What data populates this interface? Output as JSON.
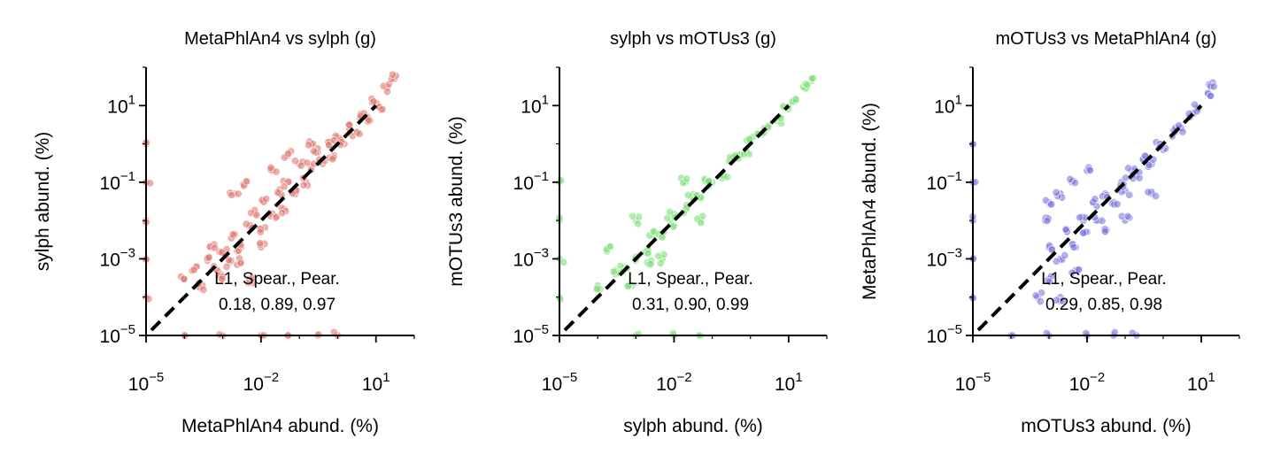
{
  "chart_data": [
    {
      "type": "scatter",
      "title": "MetaPhlAn4 vs sylph (g)",
      "xlabel": "MetaPhlAn4 abund. (%)",
      "ylabel": "sylph abund. (%)",
      "x_scale": "log",
      "y_scale": "log",
      "xlim": [
        1e-05,
        100
      ],
      "ylim": [
        1e-05,
        100
      ],
      "x_ticks": [
        {
          "value": 1e-05,
          "base": "10",
          "exp": "−5"
        },
        {
          "value": 0.01,
          "base": "10",
          "exp": "−2"
        },
        {
          "value": 10,
          "base": "10",
          "exp": "1"
        }
      ],
      "y_ticks": [
        {
          "value": 1e-05,
          "base": "10",
          "exp": "−5"
        },
        {
          "value": 0.001,
          "base": "10",
          "exp": "−3"
        },
        {
          "value": 0.1,
          "base": "10",
          "exp": "−1"
        },
        {
          "value": 10,
          "base": "10",
          "exp": "1"
        }
      ],
      "color": "#e07b74",
      "reference_line": "y = x",
      "annotation": {
        "header": "L1, Spear., Pear.",
        "values": "0.18, 0.89, 0.97"
      },
      "points": [
        [
          0.0001,
          0.0003
        ],
        [
          0.0002,
          0.0006
        ],
        [
          0.0004,
          0.0009
        ],
        [
          0.0007,
          0.0005
        ],
        [
          0.001,
          0.0015
        ],
        [
          0.0015,
          0.0008
        ],
        [
          0.002,
          0.004
        ],
        [
          0.003,
          0.002
        ],
        [
          0.005,
          0.007
        ],
        [
          0.007,
          0.015
        ],
        [
          0.01,
          0.006
        ],
        [
          0.012,
          0.03
        ],
        [
          0.02,
          0.015
        ],
        [
          0.03,
          0.05
        ],
        [
          0.04,
          0.02
        ],
        [
          0.05,
          0.1
        ],
        [
          0.08,
          0.06
        ],
        [
          0.1,
          0.3
        ],
        [
          0.15,
          0.1
        ],
        [
          0.2,
          0.25
        ],
        [
          0.3,
          0.6
        ],
        [
          0.4,
          0.3
        ],
        [
          0.6,
          0.9
        ],
        [
          0.8,
          0.5
        ],
        [
          1,
          1.5
        ],
        [
          1.5,
          1
        ],
        [
          2,
          3
        ],
        [
          3,
          2
        ],
        [
          4,
          6
        ],
        [
          6,
          5
        ],
        [
          8,
          12
        ],
        [
          12,
          9
        ],
        [
          20,
          30
        ],
        [
          30,
          50
        ],
        [
          0.002,
          0.05
        ],
        [
          0.004,
          0.1
        ],
        [
          0.0005,
          0.002
        ],
        [
          0.001,
          0.0003
        ],
        [
          0.003,
          0.0008
        ],
        [
          0.01,
          0.002
        ],
        [
          0.05,
          0.5
        ],
        [
          0.2,
          1
        ],
        [
          0.005,
          0.0003
        ],
        [
          0.0003,
          0.0002
        ],
        [
          0.02,
          0.2
        ],
        [
          1e-05,
          0.0001
        ],
        [
          1e-05,
          0.001
        ],
        [
          1e-05,
          0.01
        ],
        [
          1e-05,
          0.1
        ],
        [
          1e-05,
          1
        ],
        [
          0.0001,
          1e-05
        ],
        [
          0.001,
          1e-05
        ],
        [
          0.01,
          1e-05
        ],
        [
          0.05,
          1e-05
        ],
        [
          0.3,
          1e-05
        ],
        [
          1,
          1e-05
        ]
      ],
      "stats": {
        "L1": 0.18,
        "spearman": 0.89,
        "pearson": 0.97
      }
    },
    {
      "type": "scatter",
      "title": "sylph vs mOTUs3 (g)",
      "xlabel": "sylph abund. (%)",
      "ylabel": "mOTUs3 abund. (%)",
      "x_scale": "log",
      "y_scale": "log",
      "xlim": [
        1e-05,
        100
      ],
      "ylim": [
        1e-05,
        100
      ],
      "x_ticks": [
        {
          "value": 1e-05,
          "base": "10",
          "exp": "−5"
        },
        {
          "value": 0.01,
          "base": "10",
          "exp": "−2"
        },
        {
          "value": 10,
          "base": "10",
          "exp": "1"
        }
      ],
      "y_ticks": [
        {
          "value": 1e-05,
          "base": "10",
          "exp": "−5"
        },
        {
          "value": 0.001,
          "base": "10",
          "exp": "−3"
        },
        {
          "value": 0.1,
          "base": "10",
          "exp": "−1"
        },
        {
          "value": 10,
          "base": "10",
          "exp": "1"
        }
      ],
      "color": "#7ee07a",
      "reference_line": "y = x",
      "annotation": {
        "header": "L1, Spear., Pear.",
        "values": "0.31, 0.90, 0.99"
      },
      "points": [
        [
          0.0001,
          0.0002
        ],
        [
          0.0003,
          0.0004
        ],
        [
          0.0005,
          0.0006
        ],
        [
          0.001,
          0.0009
        ],
        [
          0.002,
          0.0015
        ],
        [
          0.003,
          0.004
        ],
        [
          0.005,
          0.004
        ],
        [
          0.008,
          0.009
        ],
        [
          0.01,
          0.015
        ],
        [
          0.02,
          0.02
        ],
        [
          0.03,
          0.04
        ],
        [
          0.05,
          0.04
        ],
        [
          0.08,
          0.1
        ],
        [
          0.1,
          0.1
        ],
        [
          0.2,
          0.15
        ],
        [
          0.3,
          0.4
        ],
        [
          0.5,
          0.5
        ],
        [
          0.8,
          0.6
        ],
        [
          1,
          1.2
        ],
        [
          2,
          1.8
        ],
        [
          3,
          3
        ],
        [
          5,
          4
        ],
        [
          8,
          9
        ],
        [
          15,
          15
        ],
        [
          30,
          30
        ],
        [
          40,
          45
        ],
        [
          0.0002,
          0.002
        ],
        [
          0.001,
          0.01
        ],
        [
          0.005,
          0.001
        ],
        [
          0.02,
          0.1
        ],
        [
          0.0008,
          0.0002
        ],
        [
          0.002,
          0.0008
        ],
        [
          0.05,
          0.01
        ],
        [
          1e-05,
          0.0001
        ],
        [
          1e-05,
          0.001
        ],
        [
          1e-05,
          0.01
        ],
        [
          1e-05,
          0.1
        ],
        [
          0.001,
          1e-05
        ],
        [
          0.01,
          1e-05
        ],
        [
          0.05,
          1e-05
        ]
      ],
      "stats": {
        "L1": 0.31,
        "spearman": 0.9,
        "pearson": 0.99
      }
    },
    {
      "type": "scatter",
      "title": "mOTUs3 vs MetaPhlAn4 (g)",
      "xlabel": "mOTUs3 abund. (%)",
      "ylabel": "MetaPhlAn4 abund. (%)",
      "x_scale": "log",
      "y_scale": "log",
      "xlim": [
        1e-05,
        100
      ],
      "ylim": [
        1e-05,
        100
      ],
      "x_ticks": [
        {
          "value": 1e-05,
          "base": "10",
          "exp": "−5"
        },
        {
          "value": 0.01,
          "base": "10",
          "exp": "−2"
        },
        {
          "value": 10,
          "base": "10",
          "exp": "1"
        }
      ],
      "y_ticks": [
        {
          "value": 1e-05,
          "base": "10",
          "exp": "−5"
        },
        {
          "value": 0.001,
          "base": "10",
          "exp": "−3"
        },
        {
          "value": 0.1,
          "base": "10",
          "exp": "−1"
        },
        {
          "value": 10,
          "base": "10",
          "exp": "1"
        }
      ],
      "color": "#7f79e0",
      "reference_line": "y = x",
      "annotation": {
        "header": "L1, Spear., Pear.",
        "values": "0.29, 0.85, 0.98"
      },
      "points": [
        [
          0.0005,
          0.0001
        ],
        [
          0.001,
          0.0003
        ],
        [
          0.001,
          0.002
        ],
        [
          0.002,
          0.001
        ],
        [
          0.003,
          0.005
        ],
        [
          0.005,
          0.002
        ],
        [
          0.008,
          0.01
        ],
        [
          0.01,
          0.005
        ],
        [
          0.015,
          0.03
        ],
        [
          0.02,
          0.01
        ],
        [
          0.03,
          0.05
        ],
        [
          0.05,
          0.03
        ],
        [
          0.08,
          0.1
        ],
        [
          0.1,
          0.06
        ],
        [
          0.15,
          0.2
        ],
        [
          0.2,
          0.15
        ],
        [
          0.3,
          0.4
        ],
        [
          0.5,
          0.3
        ],
        [
          0.8,
          1
        ],
        [
          1,
          0.7
        ],
        [
          2,
          2
        ],
        [
          3,
          2.5
        ],
        [
          5,
          5
        ],
        [
          8,
          9
        ],
        [
          15,
          20
        ],
        [
          20,
          40
        ],
        [
          0.002,
          0.05
        ],
        [
          0.004,
          0.1
        ],
        [
          0.001,
          0.03
        ],
        [
          0.01,
          0.2
        ],
        [
          0.0008,
          0.01
        ],
        [
          0.005,
          0.0005
        ],
        [
          0.03,
          0.005
        ],
        [
          0.002,
          0.0001
        ],
        [
          0.1,
          0.01
        ],
        [
          0.5,
          0.05
        ],
        [
          1e-05,
          0.0001
        ],
        [
          1e-05,
          0.001
        ],
        [
          1e-05,
          0.01
        ],
        [
          1e-05,
          0.1
        ],
        [
          1e-05,
          1
        ],
        [
          0.0001,
          1e-05
        ],
        [
          0.001,
          1e-05
        ],
        [
          0.01,
          1e-05
        ],
        [
          0.05,
          1e-05
        ],
        [
          0.2,
          1e-05
        ]
      ],
      "stats": {
        "L1": 0.29,
        "spearman": 0.85,
        "pearson": 0.98
      }
    }
  ]
}
